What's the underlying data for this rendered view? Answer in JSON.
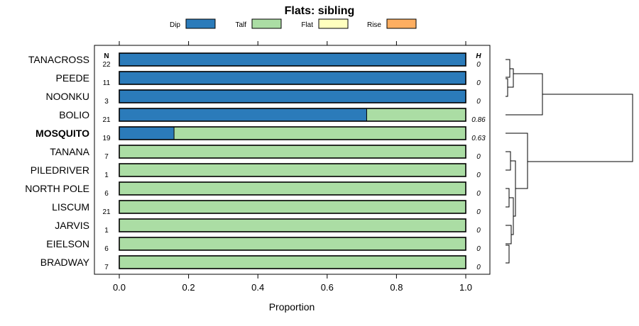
{
  "chart_data": {
    "type": "bar",
    "stacked": true,
    "orientation": "horizontal",
    "title": "Flats: sibling",
    "xlabel": "Proportion",
    "ylabel": "",
    "xlim": [
      0,
      1
    ],
    "xticks": [
      "0.0",
      "0.2",
      "0.4",
      "0.6",
      "0.8",
      "1.0"
    ],
    "n_header": "N",
    "h_header": "H",
    "legend": [
      {
        "name": "Dip",
        "color": "#2b7bba"
      },
      {
        "name": "Talf",
        "color": "#abdda4"
      },
      {
        "name": "Flat",
        "color": "#ffffbf"
      },
      {
        "name": "Rise",
        "color": "#fdae61"
      }
    ],
    "categories": [
      "TANACROSS",
      "PEEDE",
      "NOONKU",
      "BOLIO",
      "MOSQUITO",
      "TANANA",
      "PILEDRIVER",
      "NORTH POLE",
      "LISCUM",
      "JARVIS",
      "EIELSON",
      "BRADWAY"
    ],
    "highlight": "MOSQUITO",
    "n": [
      "22",
      "11",
      "3",
      "21",
      "19",
      "7",
      "1",
      "6",
      "21",
      "1",
      "6",
      "7"
    ],
    "h": [
      "0",
      "0",
      "0",
      "0.86",
      "0.63",
      "0",
      "0",
      "0",
      "0",
      "0",
      "0",
      "0"
    ],
    "series": [
      {
        "name": "Dip",
        "values": [
          1,
          1,
          1,
          0.714,
          0.158,
          0,
          0,
          0,
          0,
          0,
          0,
          0
        ]
      },
      {
        "name": "Talf",
        "values": [
          0,
          0,
          0,
          0.286,
          0.842,
          1,
          1,
          1,
          1,
          1,
          1,
          1
        ]
      },
      {
        "name": "Flat",
        "values": [
          0,
          0,
          0,
          0,
          0,
          0,
          0,
          0,
          0,
          0,
          0,
          0
        ]
      },
      {
        "name": "Rise",
        "values": [
          0,
          0,
          0,
          0,
          0,
          0,
          0,
          0,
          0,
          0,
          0,
          0
        ]
      }
    ],
    "dendrogram": "hierarchical clustering of rows"
  }
}
